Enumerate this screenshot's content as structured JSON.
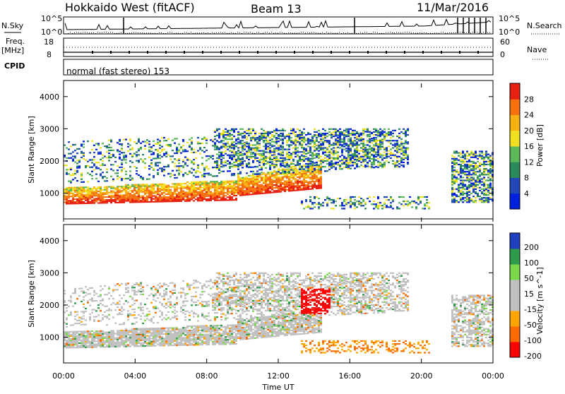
{
  "header": {
    "radar": "Hokkaido West (fitACF)",
    "beam": "Beam 13",
    "date": "11/Mar/2016"
  },
  "noise_panel": {
    "left_label": "N.Sky",
    "right_label": "N.Search",
    "left_ticks": [
      "10^5",
      "10^0"
    ],
    "right_ticks": [
      "10^5",
      "10^0"
    ]
  },
  "freq_panel": {
    "left_label_1": "Freq.",
    "left_label_2": "[MHz]",
    "left_ticks": [
      "18",
      "8"
    ],
    "right_label": "Nave",
    "right_ticks": [
      "60",
      "0"
    ]
  },
  "cpid_panel": {
    "label": "CPID",
    "mode": "normal (fast stereo) 153"
  },
  "colors": {
    "power_scale": [
      "#0020e0",
      "#2048b8",
      "#2a8a5a",
      "#5ab858",
      "#f0e020",
      "#f8b010",
      "#f87010",
      "#e82010"
    ],
    "velocity_scale": [
      "#ff0000",
      "#ff6a00",
      "#ffa500",
      "#c0c0c0",
      "#c0c0c0",
      "#7bd84a",
      "#2e9b4a",
      "#2040c0"
    ]
  },
  "chart_data": [
    {
      "type": "heatmap",
      "panel": "power",
      "ylabel": "Slant Range [km]",
      "yticks": [
        "1000",
        "2000",
        "3000",
        "4000"
      ],
      "ylim": [
        200,
        4500
      ],
      "colorbar_label": "Power [dB]",
      "colorbar_ticks": [
        "4",
        "8",
        "12",
        "16",
        "20",
        "24",
        "28"
      ],
      "clim": [
        0,
        30
      ]
    },
    {
      "type": "heatmap",
      "panel": "velocity",
      "ylabel": "Slant Range [km]",
      "yticks": [
        "1000",
        "2000",
        "3000",
        "4000"
      ],
      "ylim": [
        200,
        4500
      ],
      "colorbar_label": "Velocity [m s^-1]",
      "colorbar_ticks": [
        "200",
        "100",
        "50",
        "15",
        "-15",
        "-50",
        "-100",
        "-200"
      ],
      "xlabel": "Time UT",
      "xticks": [
        "00:00",
        "04:00",
        "08:00",
        "12:00",
        "16:00",
        "20:00",
        "00:00"
      ]
    }
  ]
}
